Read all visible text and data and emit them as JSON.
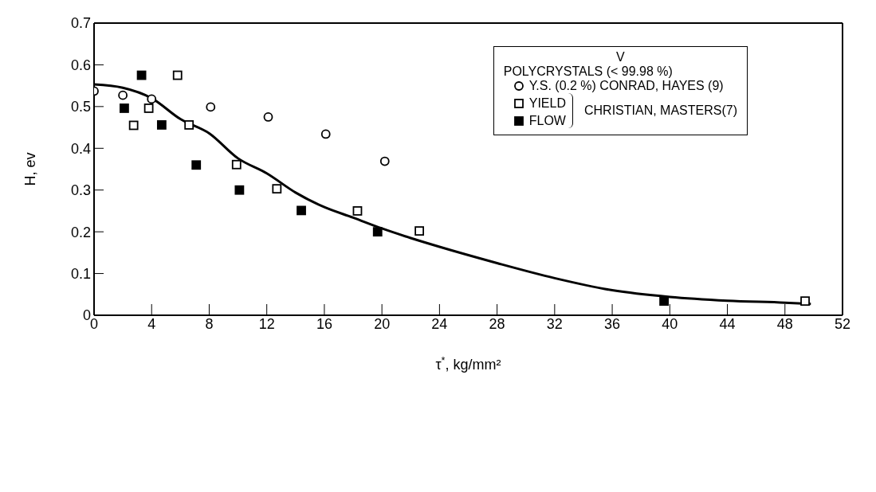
{
  "chart_data": {
    "type": "scatter",
    "xlabel": "τ$^{*}$, kg/mm²",
    "ylabel": "H, ev",
    "legend_title": "V",
    "annotations": [
      "POLYCRYSTALS (< 99.98 %)",
      "CHRISTIAN, MASTERS(7)"
    ],
    "xlim": [
      0,
      52
    ],
    "xticks": [
      0,
      4,
      8,
      12,
      16,
      20,
      24,
      28,
      32,
      36,
      40,
      44,
      48,
      52
    ],
    "ylim": [
      0,
      0.7
    ],
    "yticks": [
      0,
      0.1,
      0.2,
      0.3,
      0.4,
      0.5,
      0.6,
      0.7
    ],
    "legend": "top right",
    "series": [
      {
        "name": "Y.S. (0.2 %) CONRAD, HAYES (9)",
        "marker": "circle",
        "color": "#ffffff",
        "x": [
          0,
          2,
          4,
          8.1,
          12.1,
          16.1,
          20.2
        ],
        "values": [
          0.537,
          0.527,
          0.518,
          0.499,
          0.475,
          0.434,
          0.369
        ]
      },
      {
        "name": "YIELD",
        "marker": "square",
        "color": "#ffffff",
        "x": [
          2.75,
          3.8,
          5.8,
          6.6,
          9.9,
          12.7,
          18.3,
          22.6,
          49.4
        ],
        "values": [
          0.455,
          0.496,
          0.575,
          0.456,
          0.361,
          0.303,
          0.25,
          0.202,
          0.034
        ]
      },
      {
        "name": "FLOW",
        "marker": "square",
        "color": "#000000",
        "x": [
          2.1,
          3.3,
          4.7,
          7.1,
          10.1,
          14.4,
          19.7,
          39.6
        ],
        "values": [
          0.496,
          0.575,
          0.456,
          0.36,
          0.3,
          0.251,
          0.2,
          0.034
        ]
      },
      {
        "type": "line",
        "color": "#000000",
        "marker": "none",
        "x": [
          0,
          2,
          4,
          6,
          8,
          10,
          12,
          14,
          16,
          18,
          20,
          22,
          24,
          28,
          32,
          36,
          40,
          44,
          48,
          49.8
        ],
        "values": [
          0.553,
          0.545,
          0.52,
          0.47,
          0.436,
          0.376,
          0.34,
          0.294,
          0.259,
          0.234,
          0.208,
          0.185,
          0.164,
          0.125,
          0.089,
          0.06,
          0.044,
          0.035,
          0.03,
          0.027
        ]
      }
    ]
  }
}
